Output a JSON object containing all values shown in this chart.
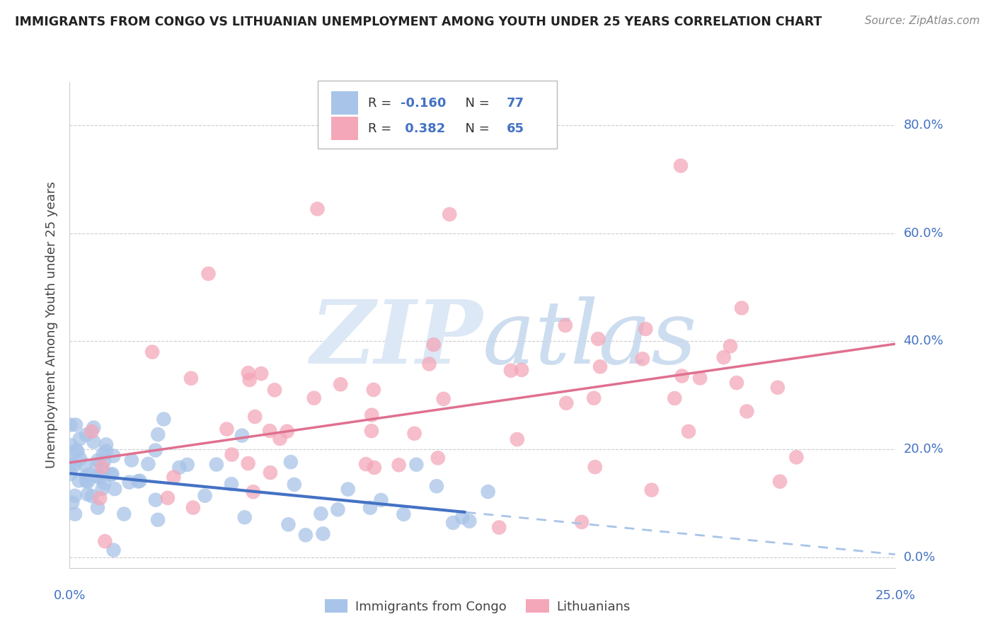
{
  "title": "IMMIGRANTS FROM CONGO VS LITHUANIAN UNEMPLOYMENT AMONG YOUTH UNDER 25 YEARS CORRELATION CHART",
  "source": "Source: ZipAtlas.com",
  "ylabel": "Unemployment Among Youth under 25 years",
  "legend_label1": "Immigrants from Congo",
  "legend_label2": "Lithuanians",
  "blue_color": "#a8c4e8",
  "blue_color_dark": "#4472c4",
  "pink_color": "#f4a7b9",
  "pink_color_dark": "#e07090",
  "R_blue": -0.16,
  "N_blue": 77,
  "R_pink": 0.382,
  "N_pink": 65,
  "xlim": [
    0.0,
    0.25
  ],
  "ylim": [
    -0.02,
    0.88
  ],
  "y_ticks": [
    0.0,
    0.2,
    0.4,
    0.6,
    0.8
  ],
  "x_ticks": [
    0.0,
    0.0625,
    0.125,
    0.1875,
    0.25
  ],
  "blue_line_solid_end": 0.12,
  "blue_intercept": 0.155,
  "blue_slope": -0.6,
  "pink_intercept": 0.175,
  "pink_slope": 0.88
}
